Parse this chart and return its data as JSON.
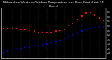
{
  "title": "Milwaukee Weather Outdoor Temperature (vs) Dew Point (Last 24 Hours)",
  "bg_color": "#000000",
  "plot_bg": "#000000",
  "grid_color": "#555555",
  "temp_color": "#ff0000",
  "dew_color": "#0000cc",
  "temp_values": [
    47,
    47,
    47,
    47,
    46,
    46,
    45,
    44,
    43,
    43,
    43,
    43,
    44,
    45,
    46,
    50,
    53,
    57,
    61,
    64,
    65,
    62,
    59,
    56
  ],
  "dew_values": [
    20,
    22,
    24,
    25,
    25,
    26,
    27,
    28,
    28,
    29,
    30,
    31,
    33,
    34,
    36,
    38,
    40,
    42,
    44,
    46,
    47,
    48,
    48,
    49
  ],
  "ylim": [
    15,
    70
  ],
  "ytick_positions": [
    20,
    25,
    30,
    35,
    40,
    45,
    50,
    55,
    60,
    65
  ],
  "ytick_labels": [
    "20",
    "25",
    "30",
    "35",
    "40",
    "45",
    "50",
    "55",
    "60",
    "65"
  ],
  "n_points": 24,
  "title_fontsize": 3.2,
  "tick_fontsize": 2.8,
  "markersize": 1.5,
  "linewidth": 0.0,
  "grid_linewidth": 0.3,
  "n_grid_lines": 12
}
